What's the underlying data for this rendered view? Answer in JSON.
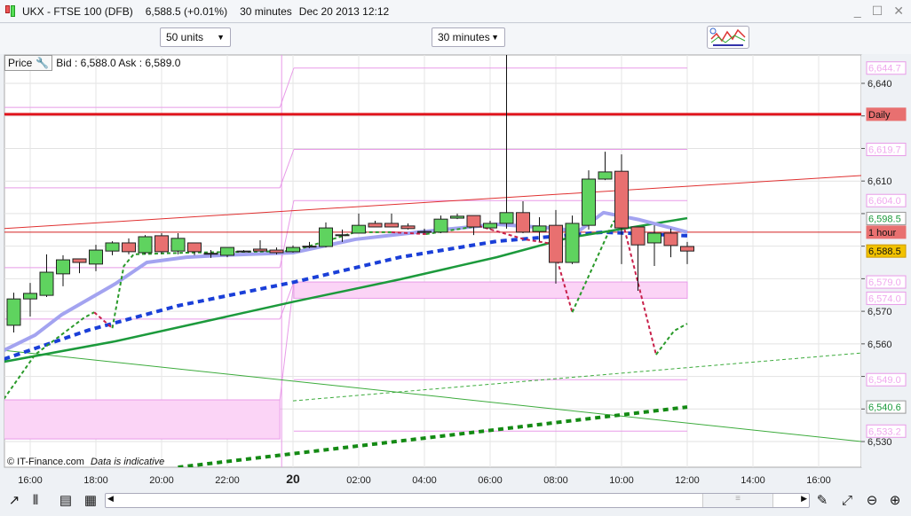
{
  "window": {
    "title": "UKX - FTSE 100 (DFB)",
    "price": "6,588.5 (+0.01%)",
    "interval": "30 minutes",
    "datetime": "Dec 20 2013 12:12",
    "controls": [
      "minimize",
      "maximize",
      "close"
    ]
  },
  "toolbar": {
    "units": "50 units",
    "interval": "30 minutes",
    "studies_icon": "studies-icon"
  },
  "pricebar": {
    "label": "Price",
    "bid_ask": "Bid : 6,588.0 Ask : 6,589.0"
  },
  "credit": {
    "copyright": "© IT-Finance.com",
    "note": "Data is indicative"
  },
  "colors": {
    "up": "#5fd35f",
    "down": "#e87070",
    "daily": "#e0141c",
    "pivot": "#e89ae8",
    "blue_ma": "#1a3fd8",
    "green_ma": "#1c9a3c",
    "lavender_ma": "#a3a3f0",
    "last": "#f2c200"
  },
  "chart_data": {
    "type": "candlestick",
    "ylim": [
      6521,
      6649
    ],
    "y_ticks": [
      6530,
      6540,
      6550,
      6560,
      6570,
      6580,
      6590,
      6600,
      6610,
      6620,
      6630,
      6640
    ],
    "y_tick_labels": [
      "6,530",
      "",
      "",
      "6,560",
      "6,570",
      "",
      "",
      "",
      "6,610",
      "",
      "",
      "6,640"
    ],
    "x_tick_labels": [
      {
        "i": 1,
        "label": "16:00"
      },
      {
        "i": 5,
        "label": "18:00"
      },
      {
        "i": 9,
        "label": "20:00"
      },
      {
        "i": 13,
        "label": "22:00"
      },
      {
        "i": 17,
        "label": "20",
        "bold": true
      },
      {
        "i": 21,
        "label": "02:00"
      },
      {
        "i": 25,
        "label": "04:00"
      },
      {
        "i": 29,
        "label": "06:00"
      },
      {
        "i": 33,
        "label": "08:00"
      },
      {
        "i": 37,
        "label": "10:00"
      },
      {
        "i": 41,
        "label": "12:00"
      },
      {
        "i": 45,
        "label": "14:00"
      },
      {
        "i": 49,
        "label": "16:00"
      }
    ],
    "candles": [
      [
        6565.7,
        6575.7,
        6563.5,
        6573.8
      ],
      [
        6573.8,
        6578.7,
        6568.4,
        6575.5
      ],
      [
        6574.9,
        6587.5,
        6574.4,
        6582.0
      ],
      [
        6581.5,
        6587.2,
        6577.7,
        6585.8
      ],
      [
        6586.1,
        6586.1,
        6581.7,
        6585.0
      ],
      [
        6584.5,
        6590.4,
        6582.3,
        6588.8
      ],
      [
        6588.5,
        6591.5,
        6587.2,
        6591.0
      ],
      [
        6591.0,
        6592.4,
        6587.5,
        6588.3
      ],
      [
        6588.0,
        6593.4,
        6587.5,
        6592.9
      ],
      [
        6593.2,
        6594.0,
        6587.7,
        6588.3
      ],
      [
        6588.5,
        6594.0,
        6587.5,
        6592.4
      ],
      [
        6591.0,
        6591.0,
        6587.2,
        6588.3
      ],
      [
        6587.7,
        6588.8,
        6586.4,
        6587.8
      ],
      [
        6587.2,
        6589.6,
        6586.6,
        6589.6
      ],
      [
        6588.5,
        6588.8,
        6588.3,
        6588.5
      ],
      [
        6589.1,
        6591.8,
        6588.5,
        6588.5
      ],
      [
        6588.8,
        6589.6,
        6587.5,
        6588.0
      ],
      [
        6588.3,
        6590.2,
        6588.0,
        6589.6
      ],
      [
        6589.9,
        6591.3,
        6589.4,
        6590.0
      ],
      [
        6589.9,
        6597.3,
        6589.6,
        6595.6
      ],
      [
        6593.4,
        6595.1,
        6591.3,
        6593.5
      ],
      [
        6594.0,
        6600.0,
        6594.0,
        6596.4
      ],
      [
        6597.0,
        6597.8,
        6595.9,
        6595.9
      ],
      [
        6597.0,
        6600.0,
        6595.9,
        6595.9
      ],
      [
        6596.2,
        6597.0,
        6595.1,
        6595.4
      ],
      [
        6594.5,
        6595.4,
        6594.0,
        6594.5
      ],
      [
        6594.3,
        6599.4,
        6594.0,
        6598.3
      ],
      [
        6598.6,
        6600.0,
        6598.3,
        6599.2
      ],
      [
        6599.4,
        6599.4,
        6593.4,
        6595.9
      ],
      [
        6595.6,
        6597.8,
        6595.1,
        6597.0
      ],
      [
        6597.0,
        6648.7,
        6595.4,
        6600.3
      ],
      [
        6600.3,
        6603.8,
        6594.0,
        6594.3
      ],
      [
        6594.5,
        6598.9,
        6591.5,
        6596.2
      ],
      [
        6596.4,
        6601.1,
        6578.5,
        6585.0
      ],
      [
        6585.0,
        6599.4,
        6584.5,
        6597.0
      ],
      [
        6596.4,
        6613.3,
        6595.1,
        6610.6
      ],
      [
        6610.6,
        6619.0,
        6610.3,
        6612.8
      ],
      [
        6613.0,
        6618.2,
        6584.5,
        6595.6
      ],
      [
        6595.9,
        6595.9,
        6576.3,
        6590.4
      ],
      [
        6591.0,
        6596.4,
        6583.9,
        6594.0
      ],
      [
        6594.0,
        6595.4,
        6586.6,
        6590.2
      ],
      [
        6589.9,
        6591.3,
        6584.5,
        6588.5
      ]
    ],
    "candle_fields": [
      "open",
      "high",
      "low",
      "close"
    ],
    "horizontal_lines": [
      {
        "label": "Daily",
        "price": 6630.5,
        "color": "#e0141c",
        "width": 3
      },
      {
        "label": "1 hour",
        "price": 6594.3,
        "color": "#d42020",
        "width": 1
      }
    ],
    "trend_lines": [
      {
        "points": [
          [
            -0.6,
            6595.4
          ],
          [
            51.6,
            6611.7
          ]
        ],
        "color": "#e03030",
        "width": 1
      },
      {
        "points": [
          [
            -0.6,
            6558.0
          ],
          [
            51.6,
            6530.0
          ]
        ],
        "color": "#3cab3c",
        "width": 1
      },
      {
        "points": [
          [
            17,
            6542.5
          ],
          [
            51.6,
            6557.2
          ]
        ],
        "color": "#3cab3c",
        "width": 1,
        "dash": "4,3"
      },
      {
        "points": [
          [
            10,
            6522.1
          ],
          [
            41,
            6540.6
          ]
        ],
        "color": "#148a14",
        "width": 4,
        "dash": "6,5"
      }
    ],
    "ma_lines": [
      {
        "points": [
          [
            -0.6,
            6555.3
          ],
          [
            4.6,
            6564.3
          ],
          [
            10,
            6571.7
          ],
          [
            17.1,
            6579.0
          ],
          [
            23.5,
            6586.6
          ],
          [
            29.4,
            6591.5
          ],
          [
            35.9,
            6594.3
          ],
          [
            41,
            6593.2
          ]
        ],
        "color": "#1a3fd8",
        "width": 4,
        "dash": "7,5"
      },
      {
        "points": [
          [
            -0.6,
            6554.5
          ],
          [
            6.2,
            6560.8
          ],
          [
            17.1,
            6573.0
          ],
          [
            23.5,
            6579.8
          ],
          [
            29.4,
            6586.6
          ],
          [
            33.8,
            6592.6
          ],
          [
            41,
            6598.6
          ]
        ],
        "color": "#1c9a3c",
        "width": 2.5
      },
      {
        "points": [
          [
            -0.6,
            6558.0
          ],
          [
            1.3,
            6562.7
          ],
          [
            2.9,
            6568.9
          ],
          [
            6.2,
            6578.5
          ],
          [
            8.1,
            6585.0
          ],
          [
            10.5,
            6586.6
          ],
          [
            12.7,
            6587.2
          ],
          [
            17,
            6588.0
          ],
          [
            20.8,
            6592.1
          ],
          [
            24.6,
            6594.3
          ],
          [
            29.4,
            6596.7
          ],
          [
            33.2,
            6595.4
          ],
          [
            34.3,
            6594.3
          ],
          [
            35.9,
            6600.3
          ],
          [
            38.1,
            6598.1
          ],
          [
            41,
            6594.3
          ]
        ],
        "color": "#a3a3f0",
        "width": 4
      }
    ],
    "sar_segments": [
      {
        "color": "#2a9a2a",
        "points": [
          [
            -0.6,
            6543.1
          ],
          [
            1.3,
            6556.7
          ],
          [
            4.3,
            6568.1
          ],
          [
            4.9,
            6569.7
          ]
        ]
      },
      {
        "color": "#c8204a",
        "points": [
          [
            4.9,
            6569.7
          ],
          [
            6.0,
            6564.8
          ]
        ]
      },
      {
        "color": "#2a9a2a",
        "points": [
          [
            6.0,
            6564.8
          ],
          [
            6.7,
            6583.9
          ],
          [
            7.3,
            6587.5
          ],
          [
            10.5,
            6588.0
          ],
          [
            17.0,
            6588.5
          ],
          [
            20.8,
            6594.3
          ],
          [
            23.0,
            6594.3
          ]
        ]
      },
      {
        "color": "#c8204a",
        "points": [
          [
            23.0,
            6594.3
          ],
          [
            25.1,
            6593.7
          ]
        ]
      },
      {
        "color": "#2a9a2a",
        "points": [
          [
            25.1,
            6593.7
          ],
          [
            28.3,
            6596.2
          ]
        ]
      },
      {
        "color": "#c8204a",
        "points": [
          [
            28.3,
            6596.2
          ],
          [
            31.1,
            6592.1
          ],
          [
            32.8,
            6590.7
          ],
          [
            34.0,
            6569.7
          ]
        ]
      },
      {
        "color": "#2a9a2a",
        "points": [
          [
            34.0,
            6569.7
          ],
          [
            36.5,
            6597.5
          ],
          [
            37.0,
            6598.9
          ]
        ]
      },
      {
        "color": "#c8204a",
        "points": [
          [
            37.0,
            6598.9
          ],
          [
            39.1,
            6556.7
          ]
        ]
      },
      {
        "color": "#2a9a2a",
        "points": [
          [
            39.1,
            6556.7
          ],
          [
            40.2,
            6564.0
          ],
          [
            41,
            6566.2
          ]
        ]
      }
    ],
    "pivot_levels": {
      "day1": {
        "from": -0.6,
        "to": 16.2,
        "lines": [
          6632.6,
          6607.9,
          6583.4,
          6567.6
        ],
        "band": [
          6530.8,
          6542.8
        ]
      },
      "day2": {
        "from": 17.05,
        "to": 41,
        "lines": [
          6644.7,
          6619.7,
          6604.0,
          6549.0,
          6533.2
        ],
        "band": [
          6574.0,
          6579.0
        ]
      }
    },
    "price_tags": [
      {
        "text": "6,644.7",
        "price": 6644.7,
        "style": "pivot"
      },
      {
        "text": "Daily",
        "price": 6630.5,
        "style": "daily"
      },
      {
        "text": "6,619.7",
        "price": 6619.7,
        "style": "pivot"
      },
      {
        "text": "6,604.0",
        "price": 6604.0,
        "style": "pivot"
      },
      {
        "text": "6,598.5",
        "price": 6598.5,
        "style": "green"
      },
      {
        "text": "1 hour",
        "price": 6594.3,
        "style": "daily"
      },
      {
        "text": "6,588.5",
        "price": 6588.5,
        "style": "last"
      },
      {
        "text": "6,579.0",
        "price": 6579.0,
        "style": "pivot"
      },
      {
        "text": "6,574.0",
        "price": 6574.0,
        "style": "pivot"
      },
      {
        "text": "6,549.0",
        "price": 6549.0,
        "style": "pivot"
      },
      {
        "text": "6,540.6",
        "price": 6540.6,
        "style": "green"
      },
      {
        "text": "6,533.2",
        "price": 6533.2,
        "style": "pivot"
      }
    ]
  },
  "bottom": {
    "scroll_grip": "≡"
  }
}
